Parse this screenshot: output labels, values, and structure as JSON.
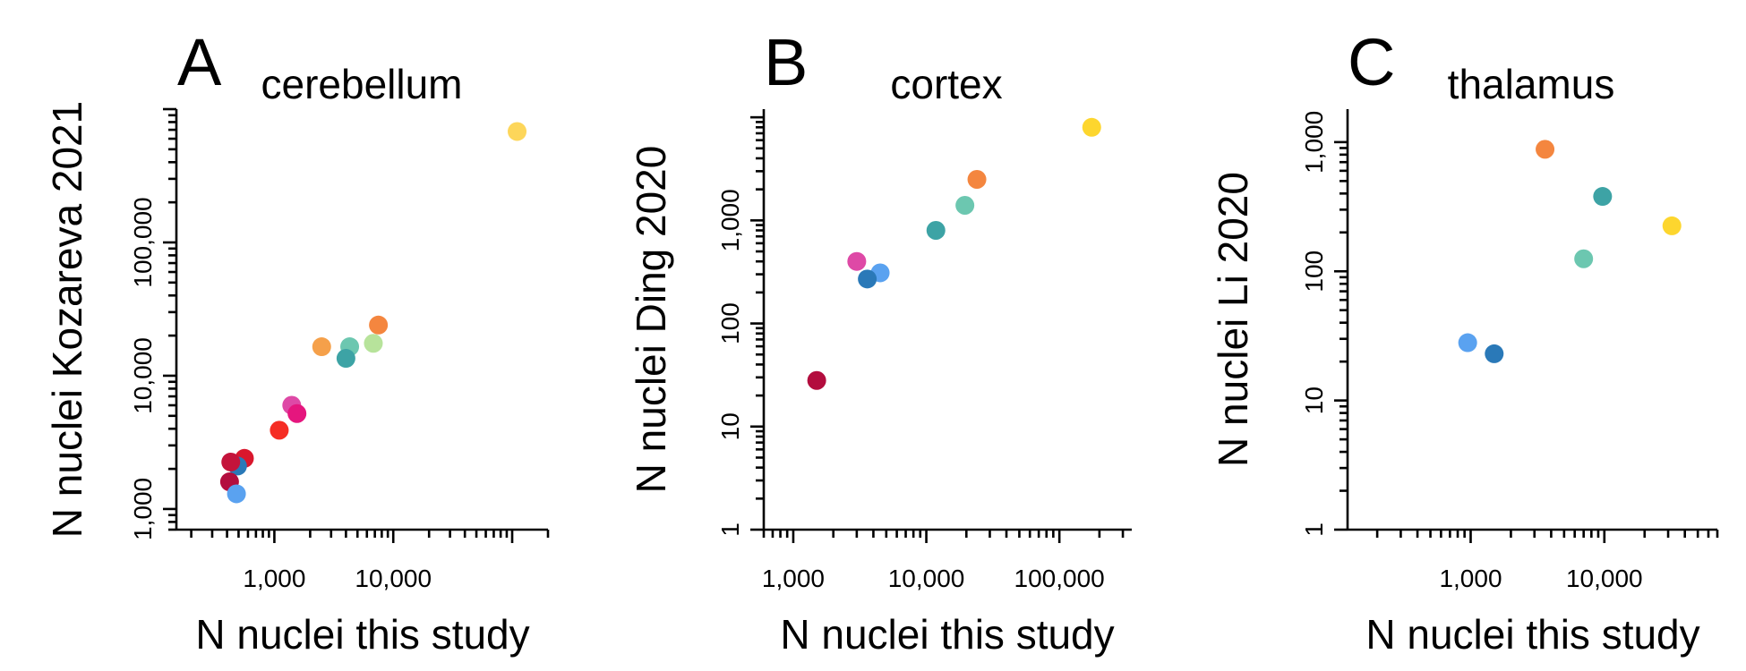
{
  "chart_data": [
    {
      "type": "scatter",
      "panel_letter": "A",
      "title": "cerebellum",
      "xlabel": "N nuclei this study",
      "ylabel": "N nuclei Kozareva 2021",
      "x_scale": "log",
      "y_scale": "log",
      "xlim": [
        150,
        200000
      ],
      "ylim": [
        700,
        1000000
      ],
      "x_ticks": [
        {
          "value": 1000,
          "label": "1,000"
        },
        {
          "value": 10000,
          "label": "10,000"
        }
      ],
      "y_ticks": [
        {
          "value": 1000,
          "label": "1,000"
        },
        {
          "value": 10000,
          "label": "10,000"
        },
        {
          "value": 100000,
          "label": "100,000"
        }
      ],
      "grid": false,
      "points": [
        {
          "x": 110000,
          "y": 680000,
          "color": "#FDD65A"
        },
        {
          "x": 7500,
          "y": 24000,
          "color": "#F4863F"
        },
        {
          "x": 6800,
          "y": 17500,
          "color": "#B7E39B"
        },
        {
          "x": 4300,
          "y": 16500,
          "color": "#6CC7B0"
        },
        {
          "x": 4000,
          "y": 13500,
          "color": "#3DA3A5"
        },
        {
          "x": 2500,
          "y": 16500,
          "color": "#F5A04A"
        },
        {
          "x": 1400,
          "y": 6000,
          "color": "#DE49A6"
        },
        {
          "x": 1550,
          "y": 5200,
          "color": "#E5167E"
        },
        {
          "x": 1100,
          "y": 3900,
          "color": "#F52D24"
        },
        {
          "x": 560,
          "y": 2400,
          "color": "#D9172D"
        },
        {
          "x": 490,
          "y": 2100,
          "color": "#2A79B8"
        },
        {
          "x": 430,
          "y": 2250,
          "color": "#C4143B"
        },
        {
          "x": 420,
          "y": 1600,
          "color": "#B30D3E"
        },
        {
          "x": 480,
          "y": 1300,
          "color": "#5AA2F0"
        }
      ]
    },
    {
      "type": "scatter",
      "panel_letter": "B",
      "title": "cortex",
      "xlabel": "N nuclei this study",
      "ylabel": "N nuclei Ding 2020",
      "x_scale": "log",
      "y_scale": "log",
      "xlim": [
        600,
        350000
      ],
      "ylim": [
        1,
        12000
      ],
      "x_ticks": [
        {
          "value": 1000,
          "label": "1,000"
        },
        {
          "value": 10000,
          "label": "10,000"
        },
        {
          "value": 100000,
          "label": "100,000"
        }
      ],
      "y_ticks": [
        {
          "value": 1,
          "label": "1"
        },
        {
          "value": 10,
          "label": "10"
        },
        {
          "value": 100,
          "label": "100"
        },
        {
          "value": 1000,
          "label": "1,000"
        }
      ],
      "grid": false,
      "points": [
        {
          "x": 175000,
          "y": 8000,
          "color": "#FDD62E"
        },
        {
          "x": 24000,
          "y": 2500,
          "color": "#F4863F"
        },
        {
          "x": 19500,
          "y": 1400,
          "color": "#6CC7B0"
        },
        {
          "x": 11800,
          "y": 800,
          "color": "#3DA3A5"
        },
        {
          "x": 3000,
          "y": 400,
          "color": "#DE49A6"
        },
        {
          "x": 4500,
          "y": 310,
          "color": "#5AA2F0"
        },
        {
          "x": 3600,
          "y": 270,
          "color": "#2A79B8"
        },
        {
          "x": 1500,
          "y": 28,
          "color": "#B30D3E"
        }
      ]
    },
    {
      "type": "scatter",
      "panel_letter": "C",
      "title": "thalamus",
      "xlabel": "N nuclei this study",
      "ylabel": "N nuclei Li 2020",
      "x_scale": "log",
      "y_scale": "log",
      "xlim": [
        120,
        70000
      ],
      "ylim": [
        1,
        1800
      ],
      "x_ticks": [
        {
          "value": 1000,
          "label": "1,000"
        },
        {
          "value": 10000,
          "label": "10,000"
        }
      ],
      "y_ticks": [
        {
          "value": 1,
          "label": "1"
        },
        {
          "value": 10,
          "label": "10"
        },
        {
          "value": 100,
          "label": "100"
        },
        {
          "value": 1000,
          "label": "1,000"
        }
      ],
      "grid": false,
      "points": [
        {
          "x": 3600,
          "y": 880,
          "color": "#F4863F"
        },
        {
          "x": 9700,
          "y": 380,
          "color": "#3DA3A5"
        },
        {
          "x": 32000,
          "y": 225,
          "color": "#FDD62E"
        },
        {
          "x": 7000,
          "y": 125,
          "color": "#6CC7B0"
        },
        {
          "x": 950,
          "y": 28,
          "color": "#5AA2F0"
        },
        {
          "x": 1500,
          "y": 23,
          "color": "#2A79B8"
        }
      ]
    }
  ]
}
